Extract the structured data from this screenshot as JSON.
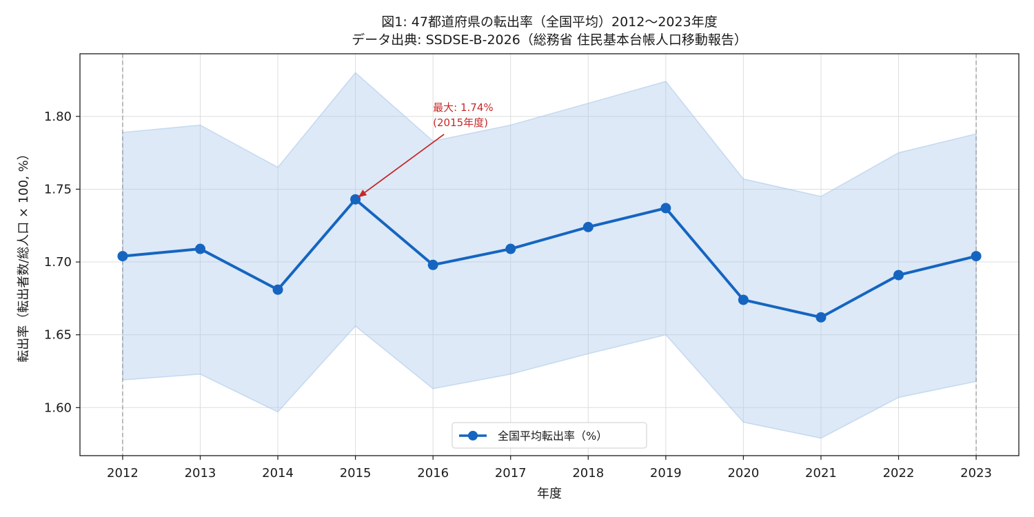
{
  "chart_data": {
    "type": "line",
    "title": "図1: 47都道府県の転出率（全国平均）2012〜2023年度",
    "subtitle": "データ出典: SSDSE-B-2026（総務省 住民基本台帳人口移動報告）",
    "xlabel": "年度",
    "ylabel": "転出率（転出者数/総人口 × 100, %）",
    "x": [
      2012,
      2013,
      2014,
      2015,
      2016,
      2017,
      2018,
      2019,
      2020,
      2021,
      2022,
      2023
    ],
    "x_ticks": [
      "2012",
      "2013",
      "2014",
      "2015",
      "2016",
      "2017",
      "2018",
      "2019",
      "2020",
      "2021",
      "2022",
      "2023"
    ],
    "xlim": [
      2011.45,
      2023.55
    ],
    "ylim": [
      1.567,
      1.843
    ],
    "y_ticks": [
      1.6,
      1.65,
      1.7,
      1.75,
      1.8
    ],
    "y_tick_labels": [
      "1.60",
      "1.65",
      "1.70",
      "1.75",
      "1.80"
    ],
    "grid": true,
    "legend": "bottom-center",
    "series": [
      {
        "name": "全国平均転出率（%）",
        "color": "#1565c0",
        "values": [
          1.704,
          1.709,
          1.681,
          1.743,
          1.698,
          1.709,
          1.724,
          1.737,
          1.674,
          1.662,
          1.691,
          1.704
        ]
      }
    ],
    "band": {
      "color": "#aac8ea",
      "upper": [
        1.789,
        1.794,
        1.765,
        1.83,
        1.783,
        1.794,
        1.809,
        1.824,
        1.757,
        1.745,
        1.775,
        1.788
      ],
      "lower": [
        1.619,
        1.623,
        1.597,
        1.656,
        1.613,
        1.623,
        1.637,
        1.65,
        1.59,
        1.579,
        1.607,
        1.618
      ]
    },
    "vlines": [
      2012,
      2023
    ],
    "annotation": {
      "line1": "最大: 1.74%",
      "line2": "(2015年度)",
      "target_x": 2015,
      "target_y": 1.743,
      "text_x": 2016,
      "text_y": 1.8,
      "color": "#c62828"
    }
  }
}
